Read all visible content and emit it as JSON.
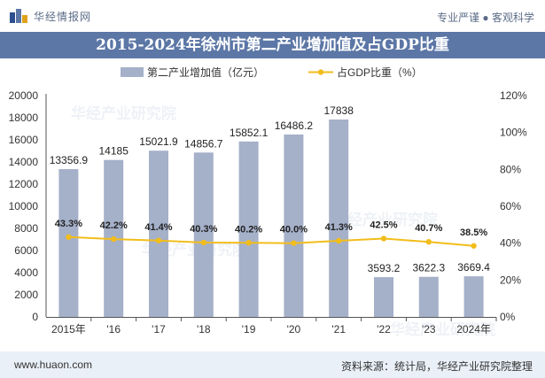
{
  "header": {
    "brand_name": "华经情报网",
    "motto": "专业严谨 ● 客观科学",
    "title": "2015-2024年徐州市第二产业增加值及占GDP比重"
  },
  "watermarks": [
    "华经产业研究院",
    "华经产业研究院",
    "华经产业研究院",
    "华经产业研究院"
  ],
  "footer": {
    "url": "www.huaon.com",
    "source": "资料来源：统计局，华经产业研究院整理"
  },
  "colors": {
    "bar": "#a5b0c9",
    "line": "#f2bd1b",
    "title_band": "#5c77a6",
    "footer_band": "#eaf0f8"
  },
  "chart_data": {
    "type": "bar",
    "categories": [
      "2015年",
      "'16",
      "'17",
      "'18",
      "'19",
      "'20",
      "'21",
      "'22",
      "'23",
      "2024年"
    ],
    "series": [
      {
        "name": "第二产业增加值（亿元）",
        "type": "bar",
        "axis": "left",
        "values": [
          13356.9,
          14185,
          15021.9,
          14856.7,
          15852.1,
          16486.2,
          17838,
          3593.2,
          3622.3,
          3669.4
        ],
        "labels": [
          "13356.9",
          "14185",
          "15021.9",
          "14856.7",
          "15852.1",
          "16486.2",
          "17838",
          "3593.2",
          "3622.3",
          "3669.4"
        ]
      },
      {
        "name": "占GDP比重（%）",
        "type": "line",
        "axis": "right",
        "values": [
          43.3,
          42.2,
          41.4,
          40.3,
          40.2,
          40.0,
          41.3,
          42.5,
          40.7,
          38.5
        ],
        "labels": [
          "43.3%",
          "42.2%",
          "41.4%",
          "40.3%",
          "40.2%",
          "40.0%",
          "41.3%",
          "42.5%",
          "40.7%",
          "38.5%"
        ]
      }
    ],
    "y_left": {
      "min": 0,
      "max": 20000,
      "ticks": [
        "0",
        "2000",
        "4000",
        "6000",
        "8000",
        "10000",
        "12000",
        "14000",
        "16000",
        "18000",
        "20000"
      ]
    },
    "y_right": {
      "min": 0,
      "max": 120,
      "ticks": [
        "0%",
        "20%",
        "40%",
        "60%",
        "80%",
        "100%",
        "120%"
      ]
    },
    "legend_position": "top",
    "grid": false
  }
}
